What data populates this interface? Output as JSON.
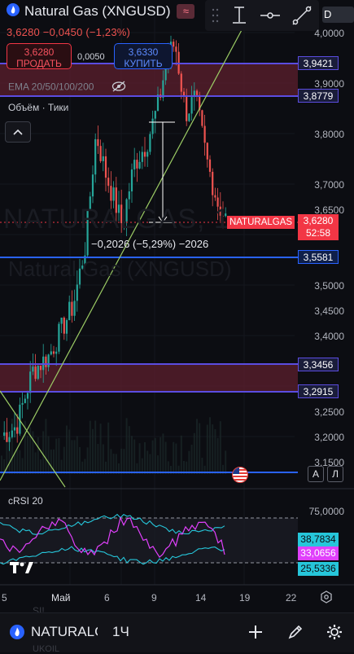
{
  "header": {
    "symbol_title": "Natural Gas (XNGUSD)",
    "price_line": "3,6280  −0,0450 (−1,23%)"
  },
  "trade": {
    "sell_price": "3,6280",
    "sell_label": "ПРОДАТЬ",
    "spread": "0,0050",
    "buy_price": "3,6330",
    "buy_label": "КУПИТЬ"
  },
  "toolbar": {
    "icons": [
      "grip-icon",
      "cursor-line-icon",
      "horizontal-line-icon",
      "trend-line-icon"
    ],
    "partial_text": "D"
  },
  "indicators": {
    "ema_label": "EMA 20/50/100/200",
    "volume_label": "Объём · Тики"
  },
  "watermark": {
    "line1": "NATURALGAS, 1",
    "line2": "Natural Gas (XNGUSD)"
  },
  "measure": {
    "text": "−0,2026 (−5,29%) −2026"
  },
  "price_axis": {
    "ticks": [
      "4,0000",
      "3,9000",
      "3,8000",
      "3,7000",
      "3,6500",
      "3,5000",
      "3,4500",
      "3,4000",
      "3,2500",
      "3,2000",
      "3,1500"
    ],
    "level_tags": [
      {
        "value": "3,9421",
        "kind": "purple"
      },
      {
        "value": "3,8779",
        "kind": "purple"
      },
      {
        "value": "3,5581",
        "kind": "blue"
      },
      {
        "value": "3,3456",
        "kind": "purple"
      },
      {
        "value": "3,2915",
        "kind": "purple"
      }
    ],
    "current_price": "3,6280",
    "countdown": "52:58",
    "symbol_tag": "NATURALGAS"
  },
  "chart_controls": {
    "auto_label": "A",
    "log_label": "Л"
  },
  "rsi": {
    "label": "cRSI 20",
    "upper_level": "75,0000",
    "values": [
      {
        "value": "38,7834",
        "color": "#26c6da"
      },
      {
        "value": "33,0656",
        "color": "#e040fb"
      },
      {
        "value": "25,5336",
        "color": "#26c6da"
      }
    ]
  },
  "time_axis": {
    "labels": [
      "5",
      "Май",
      "6",
      "9",
      "14",
      "19",
      "22"
    ]
  },
  "bottom_bar": {
    "symbol": "NATURALGAS",
    "interval": "1Ч"
  },
  "behind_text": [
    "SI!",
    "UKOIL"
  ],
  "colors": {
    "background": "#0c0d12",
    "up_candle": "#26a69a",
    "down_candle": "#ef5350",
    "zone_fill": "#5c1f2e",
    "purple_line": "#5b4ce0",
    "blue_line": "#2962ff",
    "trend_line": "#9ccc65"
  }
}
